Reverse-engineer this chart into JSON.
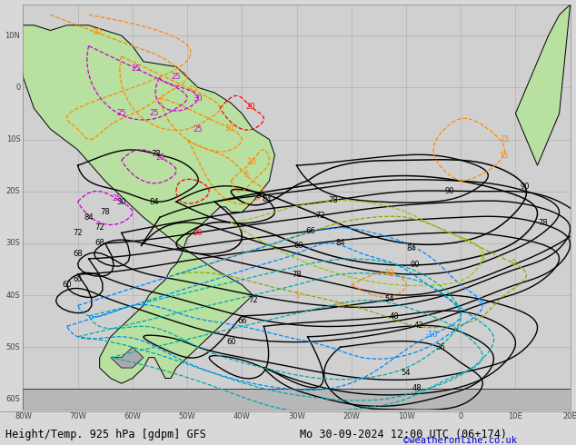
{
  "title_left": "Height/Temp. 925 hPa [gdpm] GFS",
  "title_right": "Mo 30-09-2024 12:00 UTC (06+174)",
  "credit": "©weatheronline.co.uk",
  "bg_color": "#d8d8d8",
  "land_color_green": "#b8e0a0",
  "land_color_gray": "#c8c8c8",
  "sea_color": "#d0d0d0",
  "grid_color": "#aaaaaa",
  "figsize": [
    6.34,
    4.9
  ],
  "dpi": 100,
  "title_fontsize": 8.5,
  "credit_fontsize": 7.5,
  "text_color": "#000000",
  "text_color_blue": "#0000cc",
  "bottom_bg": "#cccccc",
  "xlim": [
    -80,
    20
  ],
  "ylim": [
    -62,
    16
  ],
  "xticks": [
    -80,
    -70,
    -60,
    -50,
    -40,
    -30,
    -20,
    -10,
    0,
    10,
    20
  ],
  "yticks": [
    -60,
    -50,
    -40,
    -30,
    -20,
    -10,
    0,
    10
  ],
  "xlabel_offset_y": -63.5,
  "lon_labels": [
    "80W",
    "70W",
    "60W",
    "50W",
    "40W",
    "30W",
    "20W",
    "10W",
    "0",
    "10E",
    "20E"
  ],
  "lat_labels": [
    "60S",
    "50S",
    "40S",
    "30S",
    "20S",
    "10S",
    "0",
    "10N"
  ]
}
